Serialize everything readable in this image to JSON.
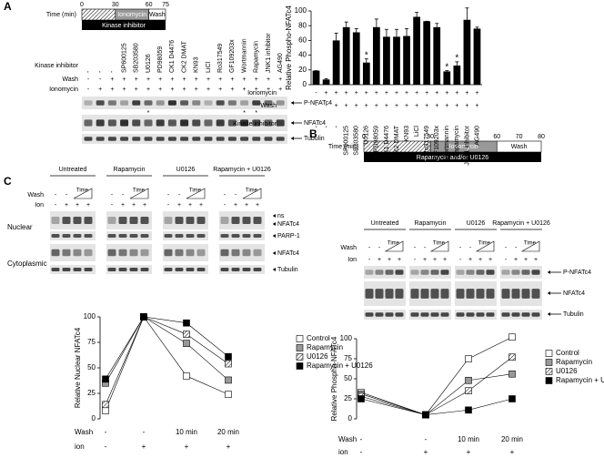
{
  "panel_a": {
    "letter": "A",
    "timeline": {
      "label": "Time (min)",
      "ticks": [
        0,
        30,
        60,
        75
      ],
      "phases": [
        "Ionomycin",
        "Wash"
      ],
      "bar": "Kinase inhibitor"
    },
    "blot": {
      "row_names": [
        "Kinase inhibitor",
        "Wash",
        "Ionomycin"
      ],
      "lanes": [
        "-",
        "-",
        "-",
        "SP600125",
        "SB203580",
        "U0126",
        "PD98059",
        "CK1 D4476",
        "CK2 DMAT",
        "KN93",
        "LiCl",
        "Ro317549",
        "GF109203x",
        "Wortmannin",
        "Rapamycin",
        "JNK1 inhibitor",
        "AG490"
      ],
      "wash": [
        "-",
        "-",
        "+",
        "+",
        "+",
        "+",
        "+",
        "+",
        "+",
        "+",
        "+",
        "+",
        "+",
        "+",
        "+",
        "+",
        "+"
      ],
      "ionomycin": [
        "-",
        "+",
        "+",
        "+",
        "+",
        "+",
        "+",
        "+",
        "+",
        "+",
        "+",
        "+",
        "+",
        "+",
        "+",
        "+",
        "+"
      ],
      "bands": [
        "P-NFATc4",
        "NFATc4",
        "Tubulin"
      ],
      "marks": [
        {
          "lane": "U0126",
          "text": "*"
        },
        {
          "lane": "Wortmannin",
          "text": "*"
        },
        {
          "lane": "Rapamycin",
          "text": "*"
        }
      ]
    }
  },
  "panel_b": {
    "letter": "B",
    "timeline": {
      "label": "Time (min)",
      "ticks": [
        0,
        30,
        60,
        70,
        80
      ],
      "phases": [
        "Ionomycin",
        "Wash"
      ],
      "bar": "Rapamycin and/or U0126"
    },
    "groups": [
      "Untreated",
      "Rapamycin",
      "U0126",
      "Rapamycin + U0126"
    ],
    "row_names": [
      "Wash",
      "Ion"
    ],
    "wash": [
      "-",
      "-"
    ],
    "time": "Time",
    "ion": [
      "-",
      "+",
      "+",
      "+"
    ],
    "bands": [
      "P-NFATc4",
      "NFATc4",
      "Tubulin"
    ]
  },
  "panel_c": {
    "letter": "C",
    "groups": [
      "Untreated",
      "Rapamycin",
      "U0126",
      "Rapamycin + U0126"
    ],
    "row_names": [
      "Wash",
      "Ion"
    ],
    "wash": [
      "-",
      "-"
    ],
    "time": "Time",
    "ion": [
      "-",
      "+",
      "+",
      "+"
    ],
    "fractions": [
      "Nuclear",
      "Cytoplasmic"
    ],
    "bands": [
      "ns",
      "NFATc4",
      "PARP-1",
      "NFATc4",
      "Tubulin"
    ]
  },
  "chart_data": [
    {
      "type": "bar",
      "ylabel": "Relative Phospho-NFATc4",
      "color": "#000000",
      "categories": [
        "-",
        "-",
        "-",
        "SP600125",
        "SB203580",
        "U0126",
        "PD98059",
        "CK1 D4476",
        "CK2 DMAT",
        "KN93",
        "LiCl",
        "Ro317549",
        "GF109203x",
        "Wortmannin",
        "Rapamycin",
        "JNK1 inhibitor",
        "AG490"
      ],
      "category_name": "Kinase inhibitor",
      "extra_rows": [
        {
          "name": "Ionomycin",
          "labels": [
            "-",
            "+",
            "+",
            "+",
            "+",
            "+",
            "+",
            "+",
            "+",
            "+",
            "+",
            "+",
            "+",
            "+",
            "+",
            "+",
            "+"
          ]
        },
        {
          "name": "Wash",
          "labels": [
            "-",
            "-",
            "+",
            "+",
            "+",
            "+",
            "+",
            "+",
            "+",
            "+",
            "+",
            "+",
            "+",
            "+",
            "+",
            "+",
            "+"
          ]
        }
      ],
      "values": [
        19,
        7,
        60,
        78,
        71,
        30,
        78,
        65,
        65,
        66,
        92,
        86,
        78,
        18,
        26,
        88,
        76
      ],
      "errors": [
        0,
        1,
        10,
        7,
        5,
        5,
        11,
        10,
        10,
        10,
        6,
        0,
        5,
        1,
        5,
        16,
        2
      ],
      "annotations": [
        {
          "category": "U0126",
          "text": "*"
        },
        {
          "category": "Wortmannin",
          "text": "*"
        },
        {
          "category": "Rapamycin",
          "text": "*"
        }
      ],
      "ylim": [
        0,
        100
      ],
      "yticks": [
        0,
        20,
        40,
        60,
        80,
        100
      ]
    },
    {
      "type": "line",
      "ylabel": "Relative Phospho-NFATc4",
      "categories": [
        "-",
        "-",
        "10 min",
        "20 min"
      ],
      "category_name": "Wash",
      "extra_rows": [
        {
          "name": "ion",
          "labels": [
            "-",
            "+",
            "+",
            "+"
          ]
        }
      ],
      "series": [
        {
          "name": "Control",
          "color": "#ffffff",
          "values": [
            33,
            5,
            75,
            102
          ]
        },
        {
          "name": "Rapamycin",
          "color": "#999999",
          "values": [
            31,
            5,
            48,
            56
          ]
        },
        {
          "name": "U0126",
          "color": "url(#hatch)",
          "values": [
            28,
            5,
            35,
            77
          ]
        },
        {
          "name": "Rapamycin + U0126",
          "color": "#000000",
          "values": [
            25,
            5,
            11,
            25
          ]
        }
      ],
      "ylim": [
        0,
        100
      ],
      "yticks": [
        0,
        25,
        50,
        75,
        100
      ]
    },
    {
      "type": "line",
      "ylabel": "Relative Nuclear NFATc4",
      "categories": [
        "-",
        "-",
        "10 min",
        "20 min"
      ],
      "category_name": "Wash",
      "extra_rows": [
        {
          "name": "ion",
          "labels": [
            "-",
            "+",
            "+",
            "+"
          ]
        }
      ],
      "series": [
        {
          "name": "Control",
          "color": "#ffffff",
          "values": [
            8,
            100,
            42,
            24
          ]
        },
        {
          "name": "Rapamycin",
          "color": "#999999",
          "values": [
            35,
            100,
            74,
            38
          ]
        },
        {
          "name": "U0126",
          "color": "url(#hatch)",
          "values": [
            14,
            100,
            83,
            54
          ]
        },
        {
          "name": "Rapamycin + U0126",
          "color": "#000000",
          "values": [
            39,
            100,
            94,
            61
          ]
        }
      ],
      "ylim": [
        0,
        100
      ],
      "yticks": [
        0,
        25,
        50,
        75,
        100
      ]
    }
  ]
}
